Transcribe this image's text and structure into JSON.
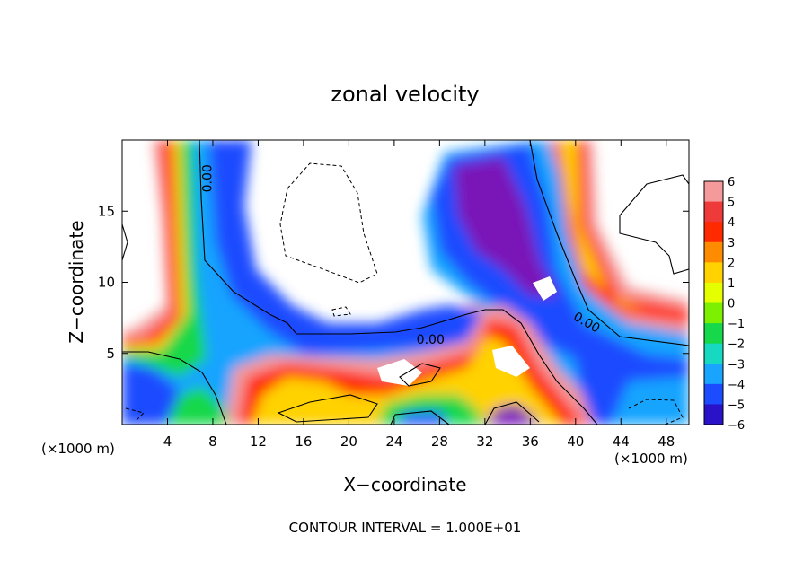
{
  "chart_data": {
    "type": "heatmap",
    "title": "zonal velocity",
    "xlabel": "X−coordinate",
    "ylabel": "Z−coordinate",
    "x_unit_label": "(×1000 m)",
    "z_unit_label": "(×1000 m)",
    "footer": "CONTOUR INTERVAL = 1.000E+01",
    "xlim": [
      0,
      50
    ],
    "ylim": [
      0,
      20
    ],
    "x_ticks": [
      4,
      8,
      12,
      16,
      20,
      24,
      28,
      32,
      36,
      40,
      44,
      48
    ],
    "y_ticks": [
      5,
      10,
      15
    ],
    "colorbar": {
      "levels": [
        6,
        5,
        4,
        3,
        2,
        1,
        0,
        -1,
        -2,
        -3,
        -4,
        -5,
        -6
      ],
      "colors": [
        "#f49a9a",
        "#ef3a3a",
        "#ff2a00",
        "#ff8c00",
        "#ffd200",
        "#e6ff00",
        "#7cf000",
        "#16d84a",
        "#17d9c1",
        "#19a4ff",
        "#1c4cff",
        "#2a12c9",
        "#7a12b8"
      ]
    },
    "contour_labels": [
      {
        "text": "0.00",
        "x": 7.5,
        "z": 17.3,
        "rotation": -90
      },
      {
        "text": "0.00",
        "x": 27.2,
        "z": 6.0,
        "rotation": 0
      },
      {
        "text": "0.00",
        "x": 41.0,
        "z": 7.2,
        "rotation": 30
      }
    ]
  }
}
